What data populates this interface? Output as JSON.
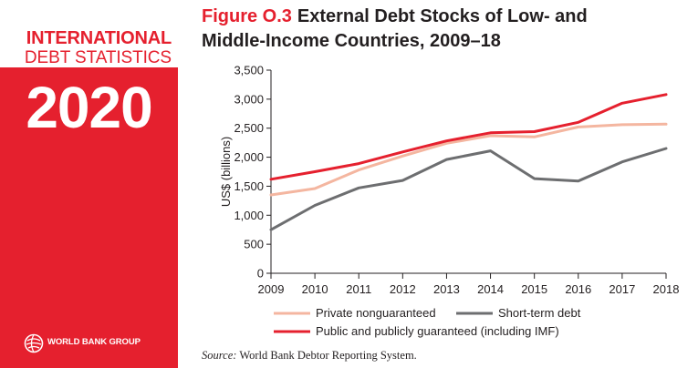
{
  "brand": {
    "line1": "INTERNATIONAL",
    "line2": "DEBT STATISTICS",
    "year": "2020",
    "publisher": "WORLD BANK GROUP",
    "logo_icon": "globe-icon",
    "color": "#e5202e"
  },
  "figure": {
    "number": "Figure O.3",
    "title_line1": "External Debt Stocks of Low- and",
    "title_line2": "Middle-Income Countries, 2009–18"
  },
  "source": {
    "label": "Source:",
    "text": "World Bank Debtor Reporting System."
  },
  "chart_data": {
    "type": "line",
    "x": [
      2009,
      2010,
      2011,
      2012,
      2013,
      2014,
      2015,
      2016,
      2017,
      2018
    ],
    "ylabel": "US$ (billions)",
    "ylim": [
      0,
      3500
    ],
    "yticks": [
      0,
      500,
      1000,
      1500,
      2000,
      2500,
      3000,
      3500
    ],
    "ytick_labels": [
      "0",
      "500",
      "1,000",
      "1,500",
      "2,000",
      "2,500",
      "3,000",
      "3,500"
    ],
    "grid": false,
    "legend_position": "bottom",
    "series": [
      {
        "name": "Private nonguaranteed",
        "color": "#f4b6a0",
        "values": [
          1350,
          1460,
          1780,
          2020,
          2240,
          2370,
          2350,
          2520,
          2560,
          2570
        ]
      },
      {
        "name": "Short-term debt",
        "color": "#6d6e70",
        "values": [
          750,
          1170,
          1470,
          1600,
          1960,
          2110,
          1630,
          1590,
          1920,
          2150
        ]
      },
      {
        "name": "Public and publicly guaranteed (including IMF)",
        "color": "#e5202e",
        "values": [
          1620,
          1750,
          1890,
          2090,
          2280,
          2420,
          2440,
          2600,
          2930,
          3080
        ]
      }
    ]
  }
}
